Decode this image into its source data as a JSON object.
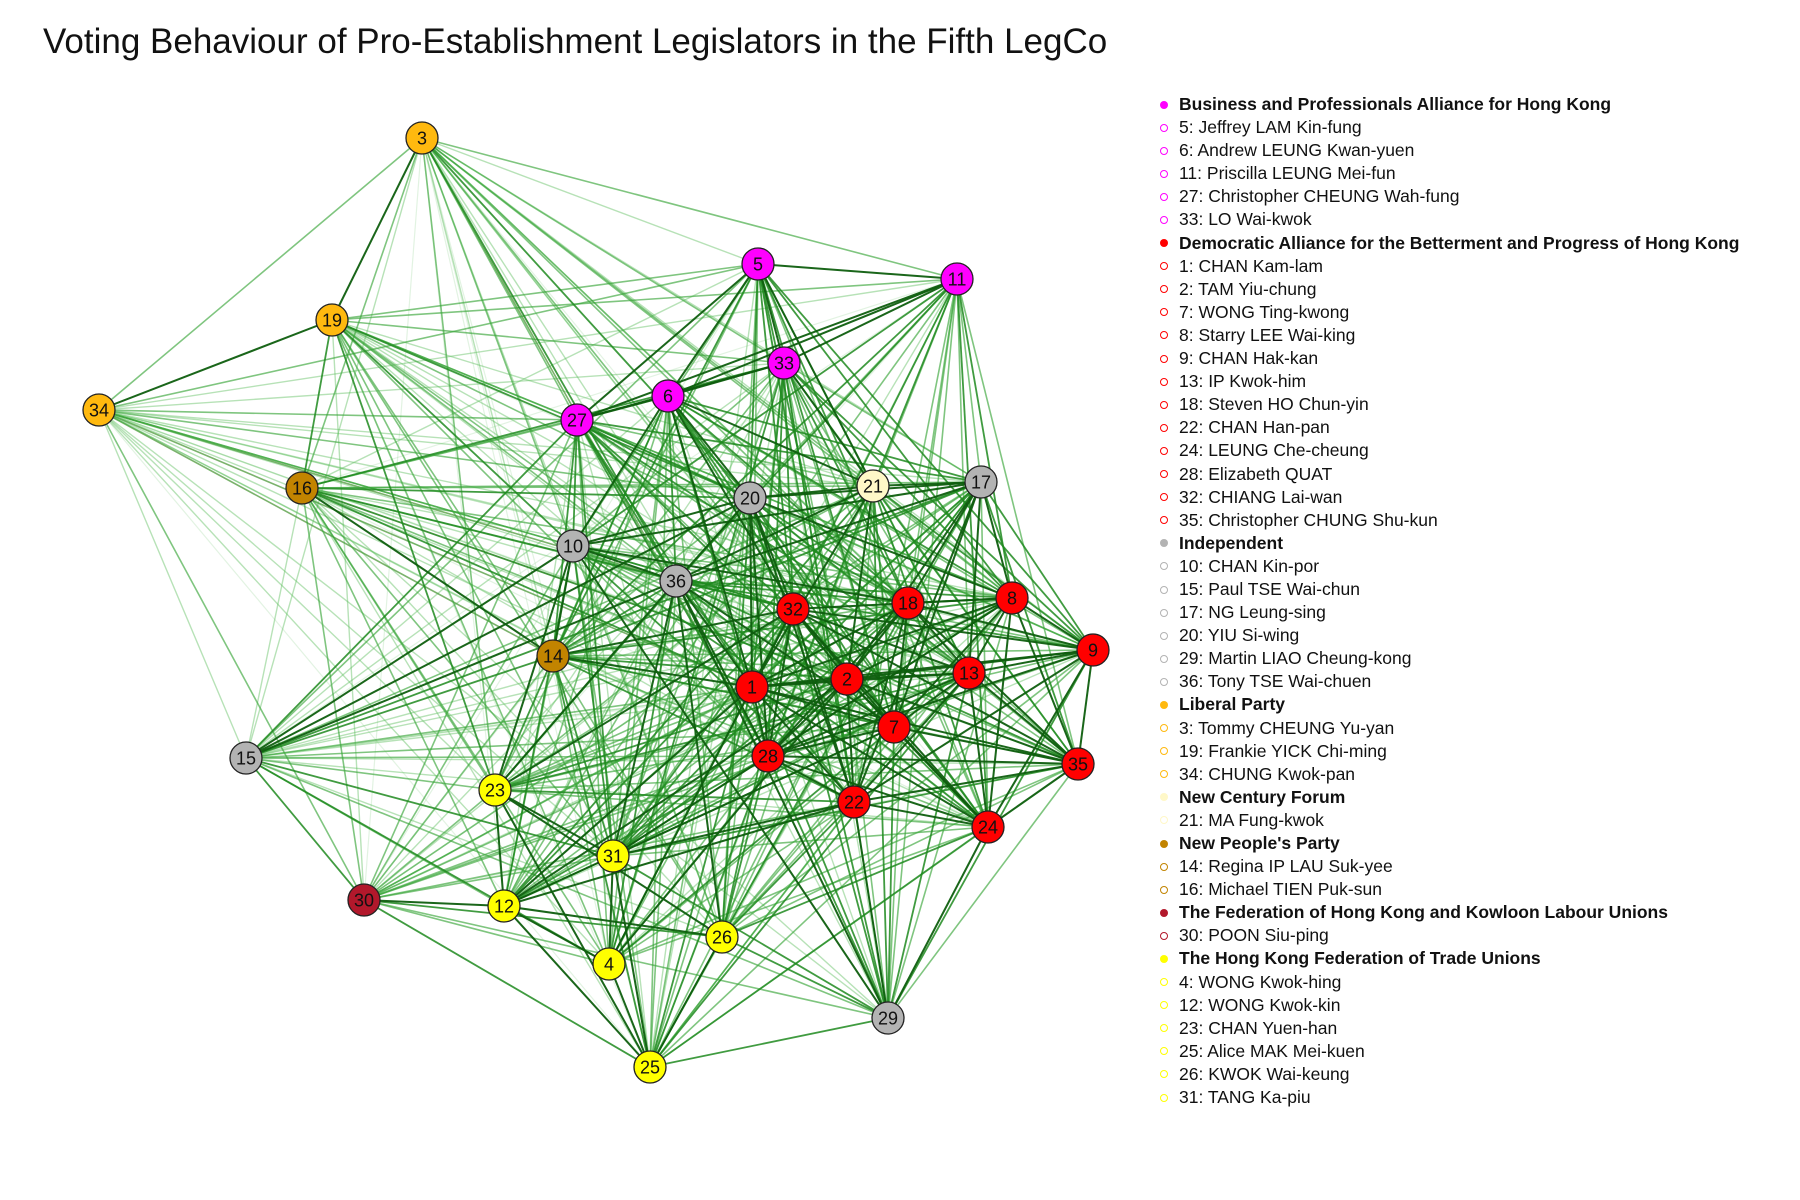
{
  "title": "Voting Behaviour of Pro-Establishment Legislators in the Fifth LegCo",
  "colors": {
    "edge_strong": "#1e7b1e",
    "edge_weak": "#a8dca8",
    "edge_negative": "#e89a9a"
  },
  "groups": [
    {
      "name": "Business and Professionals Alliance for Hong Kong",
      "color": "#ff00ff",
      "members": [
        {
          "id": 5,
          "label": "5: Jeffrey LAM Kin-fung"
        },
        {
          "id": 6,
          "label": "6: Andrew LEUNG Kwan-yuen"
        },
        {
          "id": 11,
          "label": "11: Priscilla LEUNG Mei-fun"
        },
        {
          "id": 27,
          "label": "27: Christopher CHEUNG Wah-fung"
        },
        {
          "id": 33,
          "label": "33: LO Wai-kwok"
        }
      ]
    },
    {
      "name": "Democratic Alliance for the Betterment and Progress of Hong Kong",
      "color": "#ff0000",
      "members": [
        {
          "id": 1,
          "label": "1: CHAN Kam-lam"
        },
        {
          "id": 2,
          "label": "2: TAM Yiu-chung"
        },
        {
          "id": 7,
          "label": "7: WONG Ting-kwong"
        },
        {
          "id": 8,
          "label": "8: Starry LEE Wai-king"
        },
        {
          "id": 9,
          "label": "9: CHAN Hak-kan"
        },
        {
          "id": 13,
          "label": "13: IP Kwok-him"
        },
        {
          "id": 18,
          "label": "18: Steven HO Chun-yin"
        },
        {
          "id": 22,
          "label": "22: CHAN Han-pan"
        },
        {
          "id": 24,
          "label": "24: LEUNG Che-cheung"
        },
        {
          "id": 28,
          "label": "28: Elizabeth QUAT"
        },
        {
          "id": 32,
          "label": "32: CHIANG Lai-wan"
        },
        {
          "id": 35,
          "label": "35: Christopher CHUNG Shu-kun"
        }
      ]
    },
    {
      "name": "Independent",
      "color": "#b3b3b3",
      "members": [
        {
          "id": 10,
          "label": "10: CHAN Kin-por"
        },
        {
          "id": 15,
          "label": "15: Paul TSE Wai-chun"
        },
        {
          "id": 17,
          "label": "17: NG Leung-sing"
        },
        {
          "id": 20,
          "label": "20: YIU Si-wing"
        },
        {
          "id": 29,
          "label": "29: Martin LIAO Cheung-kong"
        },
        {
          "id": 36,
          "label": "36: Tony TSE Wai-chuen"
        }
      ]
    },
    {
      "name": "Liberal Party",
      "color": "#ffb90f",
      "members": [
        {
          "id": 3,
          "label": "3: Tommy CHEUNG Yu-yan"
        },
        {
          "id": 19,
          "label": "19: Frankie YICK Chi-ming"
        },
        {
          "id": 34,
          "label": "34: CHUNG Kwok-pan"
        }
      ]
    },
    {
      "name": "New Century Forum",
      "color": "#fff8c8",
      "members": [
        {
          "id": 21,
          "label": "21: MA Fung-kwok"
        }
      ]
    },
    {
      "name": "New People's Party",
      "color": "#c28400",
      "members": [
        {
          "id": 14,
          "label": "14: Regina IP LAU Suk-yee"
        },
        {
          "id": 16,
          "label": "16: Michael TIEN Puk-sun"
        }
      ]
    },
    {
      "name": "The Federation of Hong Kong and Kowloon Labour Unions",
      "color": "#b2182b",
      "members": [
        {
          "id": 30,
          "label": "30: POON Siu-ping"
        }
      ]
    },
    {
      "name": "The Hong Kong Federation of Trade Unions",
      "color": "#ffff00",
      "members": [
        {
          "id": 4,
          "label": "4: WONG Kwok-hing"
        },
        {
          "id": 12,
          "label": "12: WONG Kwok-kin"
        },
        {
          "id": 23,
          "label": "23: CHAN Yuen-han"
        },
        {
          "id": 25,
          "label": "25: Alice MAK Mei-kuen"
        },
        {
          "id": 26,
          "label": "26: KWOK Wai-keung"
        },
        {
          "id": 31,
          "label": "31: TANG Ka-piu"
        }
      ]
    }
  ]
}
